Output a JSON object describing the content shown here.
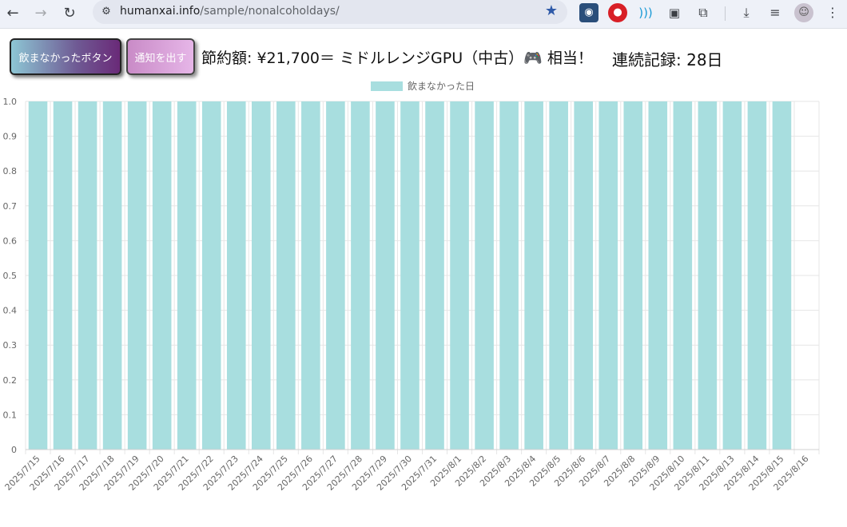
{
  "browser": {
    "url_host": "humanxai.info",
    "url_path": "/sample/nonalcoholdays/"
  },
  "controls": {
    "main_button": "飲まなかったボタン",
    "notify_button": "通知を出す",
    "savings_text": "節約額: ¥21,700＝ ミドルレンジGPU（中古）🎮 相当！",
    "streak_text": "連続記録: 28日"
  },
  "colors": {
    "bar": "#a8dedf",
    "grid": "#e6e6e6"
  },
  "chart_data": {
    "type": "bar",
    "categories": [
      "2025/7/15",
      "2025/7/16",
      "2025/7/17",
      "2025/7/18",
      "2025/7/19",
      "2025/7/20",
      "2025/7/21",
      "2025/7/22",
      "2025/7/23",
      "2025/7/24",
      "2025/7/25",
      "2025/7/26",
      "2025/7/27",
      "2025/7/28",
      "2025/7/29",
      "2025/7/30",
      "2025/7/31",
      "2025/8/1",
      "2025/8/2",
      "2025/8/3",
      "2025/8/4",
      "2025/8/5",
      "2025/8/6",
      "2025/8/7",
      "2025/8/8",
      "2025/8/9",
      "2025/8/10",
      "2025/8/11",
      "2025/8/13",
      "2025/8/14",
      "2025/8/15",
      "2025/8/16"
    ],
    "series": [
      {
        "name": "飲まなかった日",
        "values": [
          1,
          1,
          1,
          1,
          1,
          1,
          1,
          1,
          1,
          1,
          1,
          1,
          1,
          1,
          1,
          1,
          1,
          1,
          1,
          1,
          1,
          1,
          1,
          1,
          1,
          1,
          1,
          1,
          1,
          1,
          1,
          0
        ]
      }
    ],
    "yticks": [
      "0",
      "0.1",
      "0.2",
      "0.3",
      "0.4",
      "0.5",
      "0.6",
      "0.7",
      "0.8",
      "0.9",
      "1.0"
    ],
    "ylim": [
      0,
      1
    ],
    "grid": true,
    "legend": "top-center"
  }
}
